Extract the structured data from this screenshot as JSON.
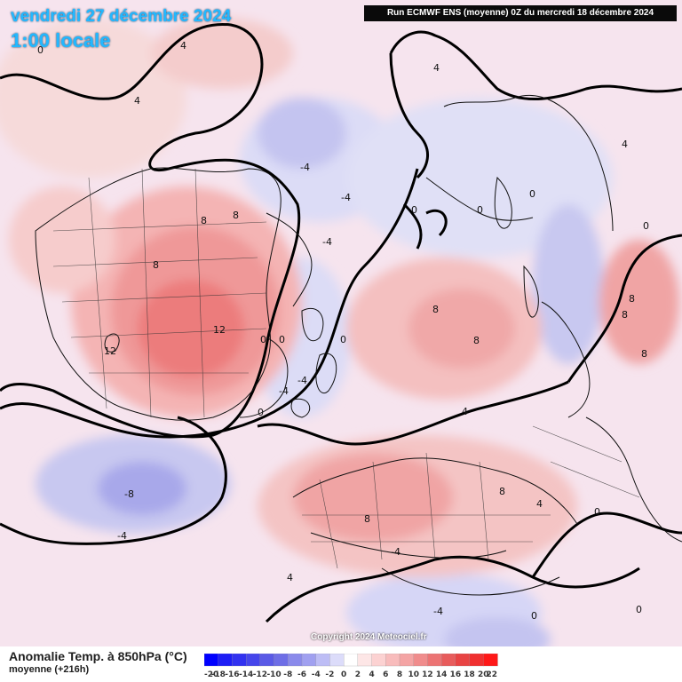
{
  "header": {
    "date": "vendredi 27 décembre 2024",
    "time": "1:00 locale",
    "run_info": "Run ECMWF ENS (moyenne) 0Z du mercredi 18 décembre 2024"
  },
  "footer": {
    "variable_title": "Anomalie Temp. à 850hPa (°C)",
    "variable_subtitle": "moyenne  (+216h)",
    "copyright": "Copyright 2024 Meteociel.fr"
  },
  "legend": {
    "values": [
      "-20",
      "-18",
      "-16",
      "-14",
      "-12",
      "-10",
      "-8",
      "-6",
      "-4",
      "-2",
      "0",
      "2",
      "4",
      "6",
      "8",
      "10",
      "12",
      "14",
      "16",
      "18",
      "20",
      "22"
    ],
    "colors": [
      "#0000ff",
      "#1e1ef5",
      "#3232f0",
      "#4646eb",
      "#5a5ae6",
      "#6e6ee6",
      "#8a8aeb",
      "#a0a0f0",
      "#bdbdf5",
      "#dcdcfa",
      "#ffffff",
      "#fde6e6",
      "#fcd2d2",
      "#f8bcbc",
      "#f4a4a4",
      "#f08c8c",
      "#ec7474",
      "#e85c5c",
      "#e84444",
      "#f03030",
      "#ff1818"
    ]
  },
  "map_labels": [
    {
      "text": "4"
    },
    {
      "text": "4"
    },
    {
      "text": "0"
    },
    {
      "text": "4"
    },
    {
      "text": "-4"
    },
    {
      "text": "-4"
    },
    {
      "text": "-4"
    },
    {
      "text": "8"
    },
    {
      "text": "8"
    },
    {
      "text": "8"
    },
    {
      "text": "12"
    },
    {
      "text": "12"
    },
    {
      "text": "0"
    },
    {
      "text": "0"
    },
    {
      "text": "-4"
    },
    {
      "text": "-4"
    },
    {
      "text": "0"
    },
    {
      "text": "-8"
    },
    {
      "text": "-4"
    },
    {
      "text": "8"
    },
    {
      "text": "8"
    },
    {
      "text": "8"
    },
    {
      "text": "8"
    },
    {
      "text": "4"
    },
    {
      "text": "0"
    },
    {
      "text": "0"
    },
    {
      "text": "0"
    },
    {
      "text": "4"
    },
    {
      "text": "8"
    },
    {
      "text": "8"
    },
    {
      "text": "8"
    },
    {
      "text": "0"
    },
    {
      "text": "4"
    },
    {
      "text": "0"
    },
    {
      "text": "-4"
    },
    {
      "text": "4"
    },
    {
      "text": "-4"
    },
    {
      "text": "0"
    },
    {
      "text": "0"
    },
    {
      "text": "0"
    }
  ]
}
